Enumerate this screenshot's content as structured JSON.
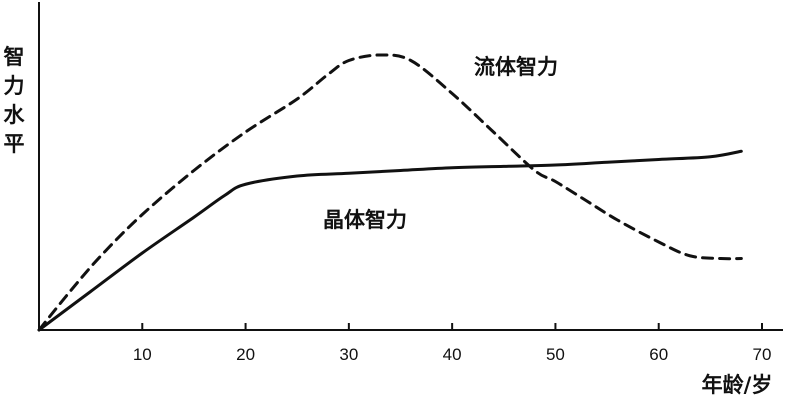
{
  "chart_data": {
    "type": "line",
    "x_ticks": [
      10,
      20,
      30,
      40,
      50,
      60,
      70
    ],
    "xlim": [
      0,
      70
    ],
    "ylim": [
      0,
      100
    ],
    "ylabel": "智力水平",
    "xlabel": "年龄/岁",
    "grid": false,
    "series": [
      {
        "name": "流体智力",
        "style": "dashed",
        "color": "#111111",
        "points": [
          [
            0,
            0
          ],
          [
            3,
            14
          ],
          [
            6,
            27
          ],
          [
            10,
            42
          ],
          [
            15,
            58
          ],
          [
            20,
            72
          ],
          [
            25,
            84
          ],
          [
            28,
            93
          ],
          [
            30,
            98
          ],
          [
            33,
            100
          ],
          [
            36,
            98
          ],
          [
            40,
            86
          ],
          [
            44,
            72
          ],
          [
            48,
            58
          ],
          [
            50,
            54
          ],
          [
            53,
            47
          ],
          [
            56,
            40
          ],
          [
            60,
            32
          ],
          [
            63,
            27
          ],
          [
            66,
            26
          ],
          [
            68,
            26
          ]
        ]
      },
      {
        "name": "晶体智力",
        "style": "solid",
        "color": "#111111",
        "points": [
          [
            0,
            0
          ],
          [
            5,
            14
          ],
          [
            10,
            28
          ],
          [
            15,
            41
          ],
          [
            18,
            49
          ],
          [
            20,
            53
          ],
          [
            25,
            56
          ],
          [
            30,
            57
          ],
          [
            35,
            58
          ],
          [
            40,
            59
          ],
          [
            45,
            59.5
          ],
          [
            50,
            60
          ],
          [
            55,
            61
          ],
          [
            60,
            62
          ],
          [
            65,
            63
          ],
          [
            68,
            65
          ]
        ]
      }
    ]
  }
}
